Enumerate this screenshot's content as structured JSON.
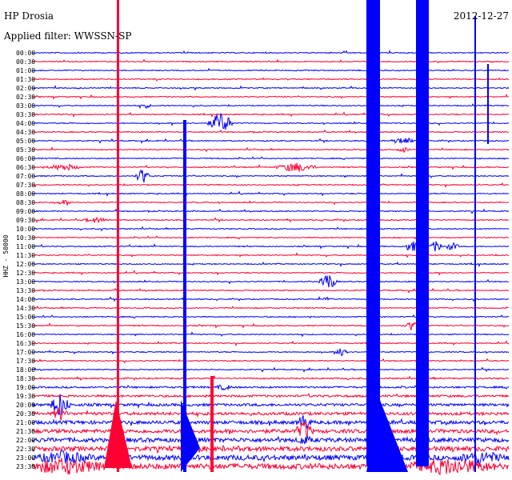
{
  "header": {
    "station": "HP Drosia",
    "filter": "Applied filter: WWSSN-SP",
    "date": "2012-12-27"
  },
  "channel": "HHZ - 50000",
  "rows": [
    "00:00",
    "00:30",
    "01:00",
    "01:30",
    "02:00",
    "02:30",
    "03:00",
    "03:30",
    "04:00",
    "04:30",
    "05:00",
    "05:30",
    "06:00",
    "06:30",
    "07:00",
    "07:30",
    "08:00",
    "08:30",
    "09:00",
    "09:30",
    "10:00",
    "10:30",
    "11:00",
    "11:30",
    "12:00",
    "12:30",
    "13:00",
    "13:30",
    "14:00",
    "14:30",
    "15:00",
    "15:30",
    "16:00",
    "16:30",
    "17:00",
    "17:30",
    "18:00",
    "18:30",
    "19:00",
    "19:30",
    "20:00",
    "20:30",
    "21:00",
    "21:30",
    "22:00",
    "22:30",
    "23:00",
    "23:30"
  ]
}
